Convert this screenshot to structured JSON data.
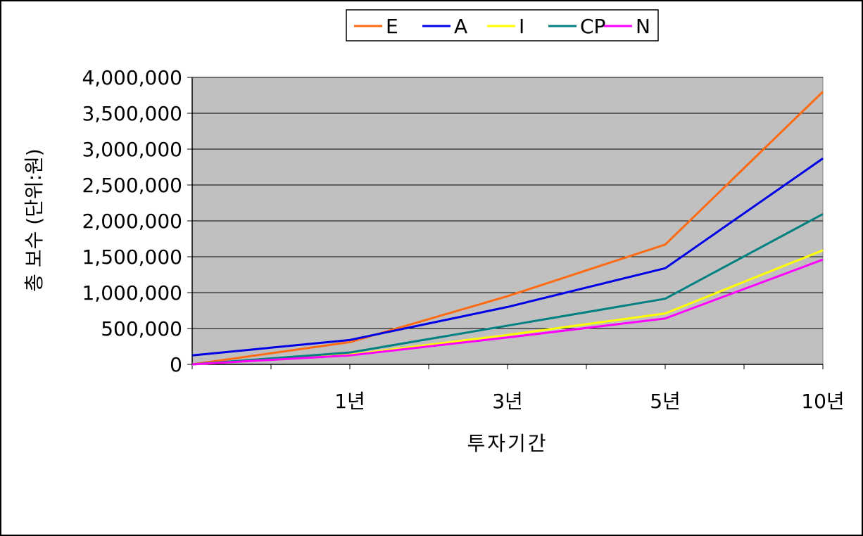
{
  "chart_data": {
    "type": "line",
    "title": "",
    "xlabel": "투자기간",
    "ylabel": "총 보수 (단위:원)",
    "categories": [
      "",
      "1년",
      "3년",
      "5년",
      "10년"
    ],
    "ylim": [
      0,
      4000000
    ],
    "yticks": [
      "0",
      "500,000",
      "1,000,000",
      "1,500,000",
      "2,000,000",
      "2,500,000",
      "3,000,000",
      "3,500,000",
      "4,000,000"
    ],
    "grid": true,
    "legend": "top-center",
    "plot_background": "#c0c0c0",
    "series": [
      {
        "name": "E",
        "color": "#ff6a13",
        "values": [
          0,
          310000,
          950000,
          1670000,
          3800000
        ]
      },
      {
        "name": "A",
        "color": "#0000e6",
        "values": [
          125000,
          340000,
          800000,
          1340000,
          2870000
        ]
      },
      {
        "name": "I",
        "color": "#ffff00",
        "values": [
          0,
          135000,
          410000,
          710000,
          1590000
        ]
      },
      {
        "name": "CP",
        "color": "#008080",
        "values": [
          0,
          165000,
          540000,
          915000,
          2095000
        ]
      },
      {
        "name": "N",
        "color": "#ff00ff",
        "values": [
          0,
          125000,
          375000,
          640000,
          1460000
        ]
      }
    ]
  }
}
